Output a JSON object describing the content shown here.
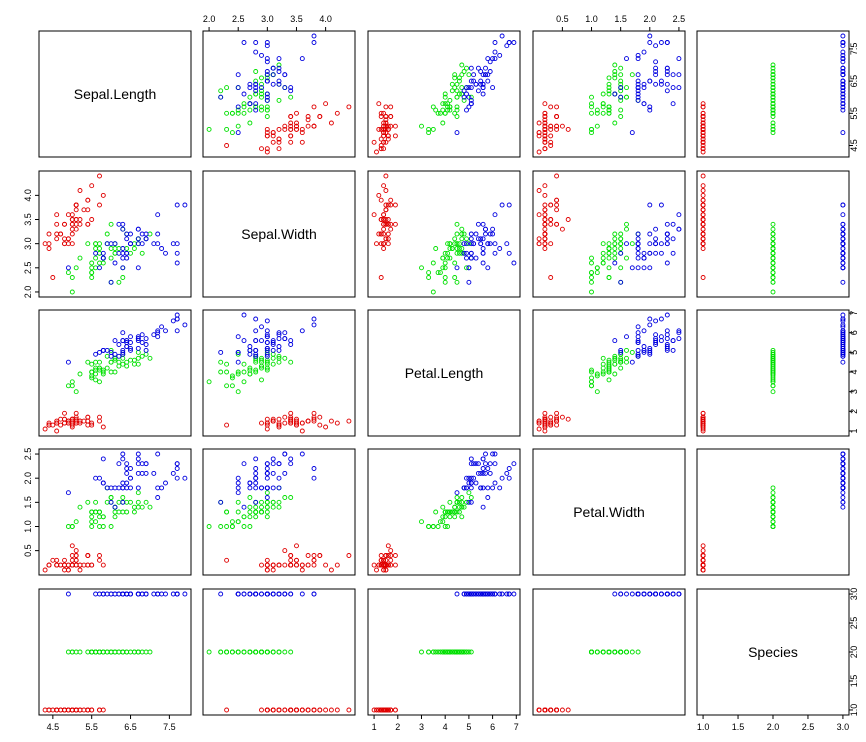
{
  "chart_data": {
    "type": "scatter",
    "title": "",
    "variables": [
      "Sepal.Length",
      "Sepal.Width",
      "Petal.Length",
      "Petal.Width",
      "Species"
    ],
    "ranges": [
      [
        4.3,
        7.9
      ],
      [
        2.0,
        4.4
      ],
      [
        1.0,
        6.9
      ],
      [
        0.1,
        2.5
      ],
      [
        1,
        3
      ]
    ],
    "ticks": [
      [
        "4.5",
        "5.5",
        "6.5",
        "7.5"
      ],
      [
        "2.0",
        "2.5",
        "3.0",
        "3.5",
        "4.0"
      ],
      [
        "1",
        "2",
        "3",
        "4",
        "5",
        "6",
        "7"
      ],
      [
        "0.5",
        "1.0",
        "1.5",
        "2.0",
        "2.5"
      ],
      [
        "1.0",
        "1.5",
        "2.0",
        "2.5",
        "3.0"
      ]
    ],
    "species_colors": [
      "#e00000",
      "#00e000",
      "#0000e0"
    ],
    "grid": false,
    "legend": "none",
    "species_codes": [
      1,
      2,
      3
    ],
    "data": [
      [
        5.1,
        3.5,
        1.4,
        0.2,
        1
      ],
      [
        4.9,
        3.0,
        1.4,
        0.2,
        1
      ],
      [
        4.7,
        3.2,
        1.3,
        0.2,
        1
      ],
      [
        4.6,
        3.1,
        1.5,
        0.2,
        1
      ],
      [
        5.0,
        3.6,
        1.4,
        0.2,
        1
      ],
      [
        5.4,
        3.9,
        1.7,
        0.4,
        1
      ],
      [
        4.6,
        3.4,
        1.4,
        0.3,
        1
      ],
      [
        5.0,
        3.4,
        1.5,
        0.2,
        1
      ],
      [
        4.4,
        2.9,
        1.4,
        0.2,
        1
      ],
      [
        4.9,
        3.1,
        1.5,
        0.1,
        1
      ],
      [
        5.4,
        3.7,
        1.5,
        0.2,
        1
      ],
      [
        4.8,
        3.4,
        1.6,
        0.2,
        1
      ],
      [
        4.8,
        3.0,
        1.4,
        0.1,
        1
      ],
      [
        4.3,
        3.0,
        1.1,
        0.1,
        1
      ],
      [
        5.8,
        4.0,
        1.2,
        0.2,
        1
      ],
      [
        5.7,
        4.4,
        1.5,
        0.4,
        1
      ],
      [
        5.4,
        3.9,
        1.3,
        0.4,
        1
      ],
      [
        5.1,
        3.5,
        1.4,
        0.3,
        1
      ],
      [
        5.7,
        3.8,
        1.7,
        0.3,
        1
      ],
      [
        5.1,
        3.8,
        1.5,
        0.3,
        1
      ],
      [
        5.4,
        3.4,
        1.7,
        0.2,
        1
      ],
      [
        5.1,
        3.7,
        1.5,
        0.4,
        1
      ],
      [
        4.6,
        3.6,
        1.0,
        0.2,
        1
      ],
      [
        5.1,
        3.3,
        1.7,
        0.5,
        1
      ],
      [
        4.8,
        3.4,
        1.9,
        0.2,
        1
      ],
      [
        5.0,
        3.0,
        1.6,
        0.2,
        1
      ],
      [
        5.0,
        3.4,
        1.6,
        0.4,
        1
      ],
      [
        5.2,
        3.5,
        1.5,
        0.2,
        1
      ],
      [
        5.2,
        3.4,
        1.4,
        0.2,
        1
      ],
      [
        4.7,
        3.2,
        1.6,
        0.2,
        1
      ],
      [
        4.8,
        3.1,
        1.6,
        0.2,
        1
      ],
      [
        5.4,
        3.4,
        1.5,
        0.4,
        1
      ],
      [
        5.2,
        4.1,
        1.5,
        0.1,
        1
      ],
      [
        5.5,
        4.2,
        1.4,
        0.2,
        1
      ],
      [
        4.9,
        3.1,
        1.5,
        0.2,
        1
      ],
      [
        5.0,
        3.2,
        1.2,
        0.2,
        1
      ],
      [
        5.5,
        3.5,
        1.3,
        0.2,
        1
      ],
      [
        4.9,
        3.6,
        1.4,
        0.1,
        1
      ],
      [
        4.4,
        3.0,
        1.3,
        0.2,
        1
      ],
      [
        5.1,
        3.4,
        1.5,
        0.2,
        1
      ],
      [
        5.0,
        3.5,
        1.3,
        0.3,
        1
      ],
      [
        4.5,
        2.3,
        1.3,
        0.3,
        1
      ],
      [
        4.4,
        3.2,
        1.3,
        0.2,
        1
      ],
      [
        5.0,
        3.5,
        1.6,
        0.6,
        1
      ],
      [
        5.1,
        3.8,
        1.9,
        0.4,
        1
      ],
      [
        4.8,
        3.0,
        1.4,
        0.3,
        1
      ],
      [
        5.1,
        3.8,
        1.6,
        0.2,
        1
      ],
      [
        4.6,
        3.2,
        1.4,
        0.2,
        1
      ],
      [
        5.3,
        3.7,
        1.5,
        0.2,
        1
      ],
      [
        5.0,
        3.3,
        1.4,
        0.2,
        1
      ],
      [
        7.0,
        3.2,
        4.7,
        1.4,
        2
      ],
      [
        6.4,
        3.2,
        4.5,
        1.5,
        2
      ],
      [
        6.9,
        3.1,
        4.9,
        1.5,
        2
      ],
      [
        5.5,
        2.3,
        4.0,
        1.3,
        2
      ],
      [
        6.5,
        2.8,
        4.6,
        1.5,
        2
      ],
      [
        5.7,
        2.8,
        4.5,
        1.3,
        2
      ],
      [
        6.3,
        3.3,
        4.7,
        1.6,
        2
      ],
      [
        4.9,
        2.4,
        3.3,
        1.0,
        2
      ],
      [
        6.6,
        2.9,
        4.6,
        1.3,
        2
      ],
      [
        5.2,
        2.7,
        3.9,
        1.4,
        2
      ],
      [
        5.0,
        2.0,
        3.5,
        1.0,
        2
      ],
      [
        5.9,
        3.0,
        4.2,
        1.5,
        2
      ],
      [
        6.0,
        2.2,
        4.0,
        1.0,
        2
      ],
      [
        6.1,
        2.9,
        4.7,
        1.4,
        2
      ],
      [
        5.6,
        2.9,
        3.6,
        1.3,
        2
      ],
      [
        6.7,
        3.1,
        4.4,
        1.4,
        2
      ],
      [
        5.6,
        3.0,
        4.5,
        1.5,
        2
      ],
      [
        5.8,
        2.7,
        4.1,
        1.0,
        2
      ],
      [
        6.2,
        2.2,
        4.5,
        1.5,
        2
      ],
      [
        5.6,
        2.5,
        3.9,
        1.1,
        2
      ],
      [
        5.9,
        3.2,
        4.8,
        1.8,
        2
      ],
      [
        6.1,
        2.8,
        4.0,
        1.3,
        2
      ],
      [
        6.3,
        2.5,
        4.9,
        1.5,
        2
      ],
      [
        6.1,
        2.8,
        4.7,
        1.2,
        2
      ],
      [
        6.4,
        2.9,
        4.3,
        1.3,
        2
      ],
      [
        6.6,
        3.0,
        4.4,
        1.4,
        2
      ],
      [
        6.8,
        2.8,
        4.8,
        1.4,
        2
      ],
      [
        6.7,
        3.0,
        5.0,
        1.7,
        2
      ],
      [
        6.0,
        2.9,
        4.5,
        1.5,
        2
      ],
      [
        5.7,
        2.6,
        3.5,
        1.0,
        2
      ],
      [
        5.5,
        2.4,
        3.8,
        1.1,
        2
      ],
      [
        5.5,
        2.4,
        3.7,
        1.0,
        2
      ],
      [
        5.8,
        2.7,
        3.9,
        1.2,
        2
      ],
      [
        6.0,
        2.7,
        5.1,
        1.6,
        2
      ],
      [
        5.4,
        3.0,
        4.5,
        1.5,
        2
      ],
      [
        6.0,
        3.4,
        4.5,
        1.6,
        2
      ],
      [
        6.7,
        3.1,
        4.7,
        1.5,
        2
      ],
      [
        6.3,
        2.3,
        4.4,
        1.3,
        2
      ],
      [
        5.6,
        3.0,
        4.1,
        1.3,
        2
      ],
      [
        5.5,
        2.5,
        4.0,
        1.3,
        2
      ],
      [
        5.5,
        2.6,
        4.4,
        1.2,
        2
      ],
      [
        6.1,
        3.0,
        4.6,
        1.4,
        2
      ],
      [
        5.8,
        2.6,
        4.0,
        1.2,
        2
      ],
      [
        5.0,
        2.3,
        3.3,
        1.0,
        2
      ],
      [
        5.6,
        2.7,
        4.2,
        1.3,
        2
      ],
      [
        5.7,
        3.0,
        4.2,
        1.2,
        2
      ],
      [
        5.7,
        2.9,
        4.2,
        1.3,
        2
      ],
      [
        6.2,
        2.9,
        4.3,
        1.3,
        2
      ],
      [
        5.1,
        2.5,
        3.0,
        1.1,
        2
      ],
      [
        5.7,
        2.8,
        4.1,
        1.3,
        2
      ],
      [
        6.3,
        3.3,
        6.0,
        2.5,
        3
      ],
      [
        5.8,
        2.7,
        5.1,
        1.9,
        3
      ],
      [
        7.1,
        3.0,
        5.9,
        2.1,
        3
      ],
      [
        6.3,
        2.9,
        5.6,
        1.8,
        3
      ],
      [
        6.5,
        3.0,
        5.8,
        2.2,
        3
      ],
      [
        7.6,
        3.0,
        6.6,
        2.1,
        3
      ],
      [
        4.9,
        2.5,
        4.5,
        1.7,
        3
      ],
      [
        7.3,
        2.9,
        6.3,
        1.8,
        3
      ],
      [
        6.7,
        2.5,
        5.8,
        1.8,
        3
      ],
      [
        7.2,
        3.6,
        6.1,
        2.5,
        3
      ],
      [
        6.5,
        3.2,
        5.1,
        2.0,
        3
      ],
      [
        6.4,
        2.7,
        5.3,
        1.9,
        3
      ],
      [
        6.8,
        3.0,
        5.5,
        2.1,
        3
      ],
      [
        5.7,
        2.5,
        5.0,
        2.0,
        3
      ],
      [
        5.8,
        2.8,
        5.1,
        2.4,
        3
      ],
      [
        6.4,
        3.2,
        5.3,
        2.3,
        3
      ],
      [
        6.5,
        3.0,
        5.5,
        1.8,
        3
      ],
      [
        7.7,
        3.8,
        6.7,
        2.2,
        3
      ],
      [
        7.7,
        2.6,
        6.9,
        2.3,
        3
      ],
      [
        6.0,
        2.2,
        5.0,
        1.5,
        3
      ],
      [
        6.9,
        3.2,
        5.7,
        2.3,
        3
      ],
      [
        5.6,
        2.8,
        4.9,
        2.0,
        3
      ],
      [
        7.7,
        2.8,
        6.7,
        2.0,
        3
      ],
      [
        6.3,
        2.7,
        4.9,
        1.8,
        3
      ],
      [
        6.7,
        3.3,
        5.7,
        2.1,
        3
      ],
      [
        7.2,
        3.2,
        6.0,
        1.8,
        3
      ],
      [
        6.2,
        2.8,
        4.8,
        1.8,
        3
      ],
      [
        6.1,
        3.0,
        4.9,
        1.8,
        3
      ],
      [
        6.4,
        2.8,
        5.6,
        2.1,
        3
      ],
      [
        7.2,
        3.0,
        5.8,
        1.6,
        3
      ],
      [
        7.4,
        2.8,
        6.1,
        1.9,
        3
      ],
      [
        7.9,
        3.8,
        6.4,
        2.0,
        3
      ],
      [
        6.4,
        2.8,
        5.6,
        2.2,
        3
      ],
      [
        6.3,
        2.8,
        5.1,
        1.5,
        3
      ],
      [
        6.1,
        2.6,
        5.6,
        1.4,
        3
      ],
      [
        7.7,
        3.0,
        6.1,
        2.3,
        3
      ],
      [
        6.3,
        3.4,
        5.6,
        2.4,
        3
      ],
      [
        6.4,
        3.1,
        5.5,
        1.8,
        3
      ],
      [
        6.0,
        3.0,
        4.8,
        1.8,
        3
      ],
      [
        6.9,
        3.1,
        5.4,
        2.1,
        3
      ],
      [
        6.7,
        3.1,
        5.6,
        2.4,
        3
      ],
      [
        6.9,
        3.1,
        5.1,
        2.3,
        3
      ],
      [
        5.8,
        2.7,
        5.1,
        1.9,
        3
      ],
      [
        6.8,
        3.2,
        5.9,
        2.3,
        3
      ],
      [
        6.7,
        3.3,
        5.7,
        2.5,
        3
      ],
      [
        6.7,
        3.0,
        5.2,
        2.3,
        3
      ],
      [
        6.3,
        2.5,
        5.0,
        1.9,
        3
      ],
      [
        6.5,
        3.0,
        5.2,
        2.0,
        3
      ],
      [
        6.2,
        3.4,
        5.4,
        2.3,
        3
      ],
      [
        5.9,
        3.0,
        5.1,
        1.8,
        3
      ]
    ]
  }
}
